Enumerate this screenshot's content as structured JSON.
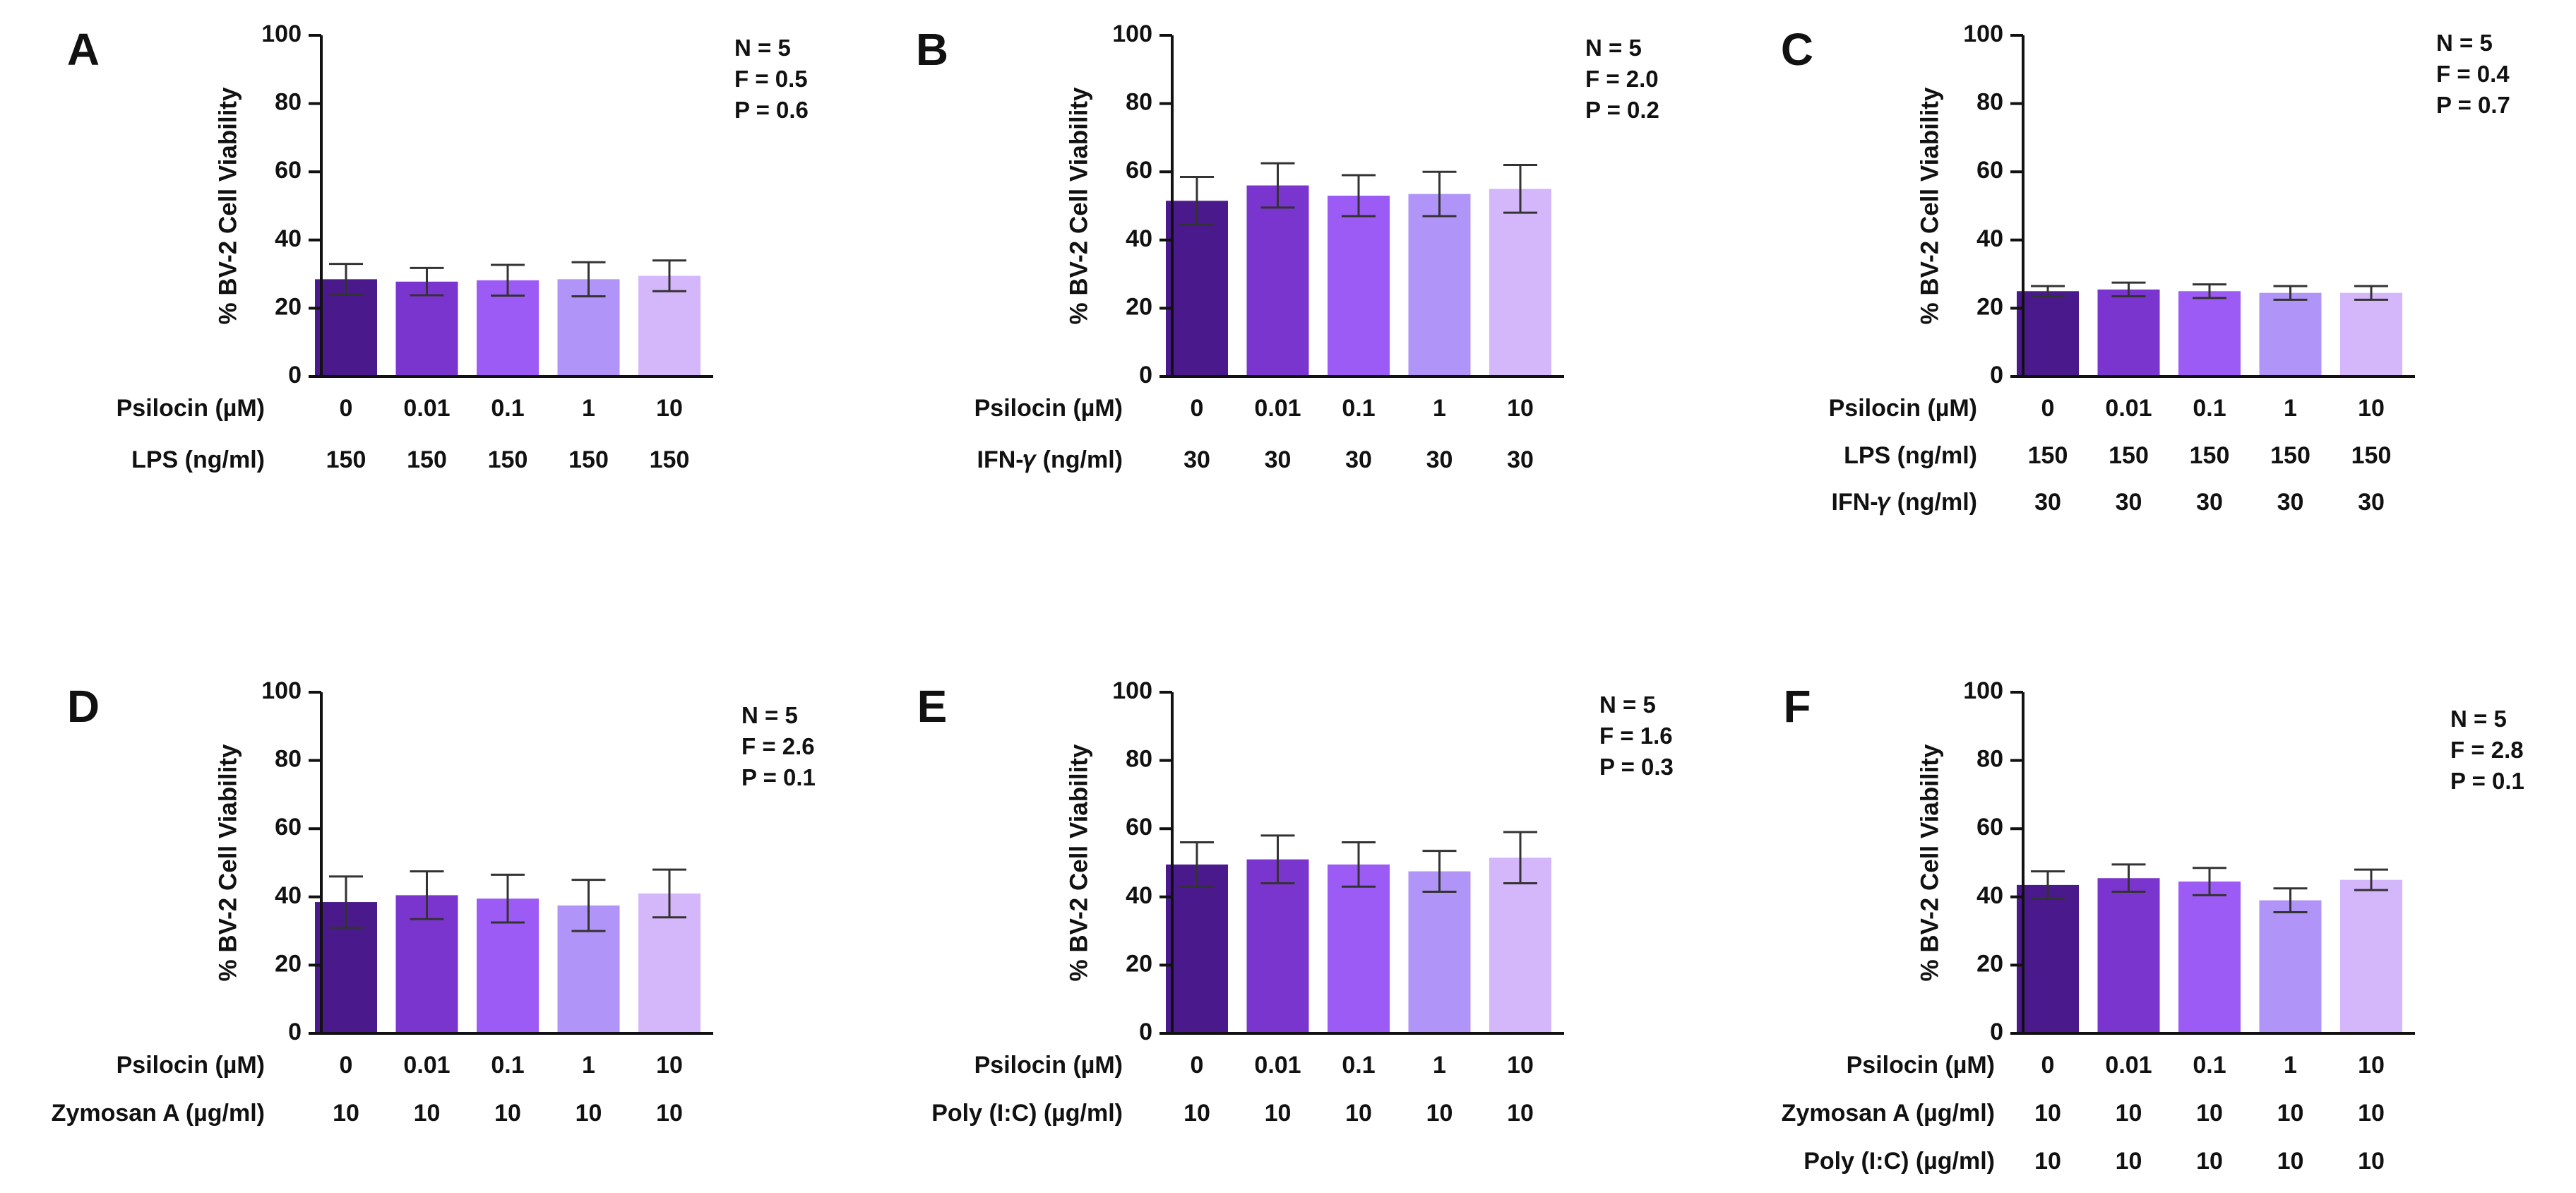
{
  "figure": {
    "stat_prefixes": {
      "n": "N = ",
      "f": "F = ",
      "p": "P = "
    }
  },
  "colors": {
    "bars": [
      "#4A1A8C",
      "#7B35CF",
      "#9D5BF5",
      "#B094F7",
      "#D4B6FB"
    ],
    "axis": "#111111",
    "text": "#111111"
  },
  "chart_data": [
    {
      "type": "bar",
      "panel_label": "A",
      "ylabel": "% BV-2 Cell Viability",
      "ylim": [
        0,
        100
      ],
      "yticks": [
        "0",
        "20",
        "40",
        "60",
        "80",
        "100"
      ],
      "categories": [
        "0",
        "0.01",
        "0.1",
        "1",
        "10"
      ],
      "values": [
        28.5,
        27.8,
        28.2,
        28.5,
        29.5
      ],
      "errors": [
        4.5,
        4.0,
        4.5,
        5.0,
        4.5
      ],
      "stats": {
        "n": "5",
        "f": "0.5",
        "p": "0.6"
      },
      "treatment_rows": [
        {
          "label": "Psilocin (µM)",
          "values": [
            "0",
            "0.01",
            "0.1",
            "1",
            "10"
          ]
        },
        {
          "label": "LPS (ng/ml)",
          "values": [
            "150",
            "150",
            "150",
            "150",
            "150"
          ]
        }
      ]
    },
    {
      "type": "bar",
      "panel_label": "B",
      "ylabel": "% BV-2 Cell Viability",
      "ylim": [
        0,
        100
      ],
      "yticks": [
        "0",
        "20",
        "40",
        "60",
        "80",
        "100"
      ],
      "categories": [
        "0",
        "0.01",
        "0.1",
        "1",
        "10"
      ],
      "values": [
        51.5,
        56.0,
        53.0,
        53.5,
        55.0
      ],
      "errors": [
        7.0,
        6.5,
        6.0,
        6.5,
        7.0
      ],
      "stats": {
        "n": "5",
        "f": "2.0",
        "p": "0.2"
      },
      "treatment_rows": [
        {
          "label": "Psilocin (µM)",
          "values": [
            "0",
            "0.01",
            "0.1",
            "1",
            "10"
          ]
        },
        {
          "label": "IFN-𝛾 (ng/ml)",
          "values": [
            "30",
            "30",
            "30",
            "30",
            "30"
          ]
        }
      ]
    },
    {
      "type": "bar",
      "panel_label": "C",
      "ylabel": "% BV-2 Cell Viability",
      "ylim": [
        0,
        100
      ],
      "yticks": [
        "0",
        "20",
        "40",
        "60",
        "80",
        "100"
      ],
      "categories": [
        "0",
        "0.01",
        "0.1",
        "1",
        "10"
      ],
      "values": [
        25.0,
        25.5,
        25.0,
        24.5,
        24.5
      ],
      "errors": [
        1.5,
        2.0,
        2.0,
        2.0,
        2.0
      ],
      "stats": {
        "n": "5",
        "f": "0.4",
        "p": "0.7"
      },
      "treatment_rows": [
        {
          "label": "Psilocin (µM)",
          "values": [
            "0",
            "0.01",
            "0.1",
            "1",
            "10"
          ]
        },
        {
          "label": "LPS (ng/ml)",
          "values": [
            "150",
            "150",
            "150",
            "150",
            "150"
          ]
        },
        {
          "label": "IFN-𝛾 (ng/ml)",
          "values": [
            "30",
            "30",
            "30",
            "30",
            "30"
          ]
        }
      ]
    },
    {
      "type": "bar",
      "panel_label": "D",
      "ylabel": "% BV-2 Cell Viability",
      "ylim": [
        0,
        100
      ],
      "yticks": [
        "0",
        "20",
        "40",
        "60",
        "80",
        "100"
      ],
      "categories": [
        "0",
        "0.01",
        "0.1",
        "1",
        "10"
      ],
      "values": [
        38.5,
        40.5,
        39.5,
        37.5,
        41.0
      ],
      "errors": [
        7.5,
        7.0,
        7.0,
        7.5,
        7.0
      ],
      "stats": {
        "n": "5",
        "f": "2.6",
        "p": "0.1"
      },
      "treatment_rows": [
        {
          "label": "Psilocin (µM)",
          "values": [
            "0",
            "0.01",
            "0.1",
            "1",
            "10"
          ]
        },
        {
          "label": "Zymosan A (µg/ml)",
          "values": [
            "10",
            "10",
            "10",
            "10",
            "10"
          ]
        }
      ]
    },
    {
      "type": "bar",
      "panel_label": "E",
      "ylabel": "% BV-2 Cell Viability",
      "ylim": [
        0,
        100
      ],
      "yticks": [
        "0",
        "20",
        "40",
        "60",
        "80",
        "100"
      ],
      "categories": [
        "0",
        "0.01",
        "0.1",
        "1",
        "10"
      ],
      "values": [
        49.5,
        51.0,
        49.5,
        47.5,
        51.5
      ],
      "errors": [
        6.5,
        7.0,
        6.5,
        6.0,
        7.5
      ],
      "stats": {
        "n": "5",
        "f": "1.6",
        "p": "0.3"
      },
      "treatment_rows": [
        {
          "label": "Psilocin (µM)",
          "values": [
            "0",
            "0.01",
            "0.1",
            "1",
            "10"
          ]
        },
        {
          "label": "Poly (I:C) (µg/ml)",
          "values": [
            "10",
            "10",
            "10",
            "10",
            "10"
          ]
        }
      ]
    },
    {
      "type": "bar",
      "panel_label": "F",
      "ylabel": "% BV-2 Cell Viability",
      "ylim": [
        0,
        100
      ],
      "yticks": [
        "0",
        "20",
        "40",
        "60",
        "80",
        "100"
      ],
      "categories": [
        "0",
        "0.01",
        "0.1",
        "1",
        "10"
      ],
      "values": [
        43.5,
        45.5,
        44.5,
        39.0,
        45.0
      ],
      "errors": [
        4.0,
        4.0,
        4.0,
        3.5,
        3.0
      ],
      "stats": {
        "n": "5",
        "f": "2.8",
        "p": "0.1"
      },
      "treatment_rows": [
        {
          "label": "Psilocin (µM)",
          "values": [
            "0",
            "0.01",
            "0.1",
            "1",
            "10"
          ]
        },
        {
          "label": "Zymosan A (µg/ml)",
          "values": [
            "10",
            "10",
            "10",
            "10",
            "10"
          ]
        },
        {
          "label": "Poly (I:C) (µg/ml)",
          "values": [
            "10",
            "10",
            "10",
            "10",
            "10"
          ]
        }
      ]
    }
  ]
}
